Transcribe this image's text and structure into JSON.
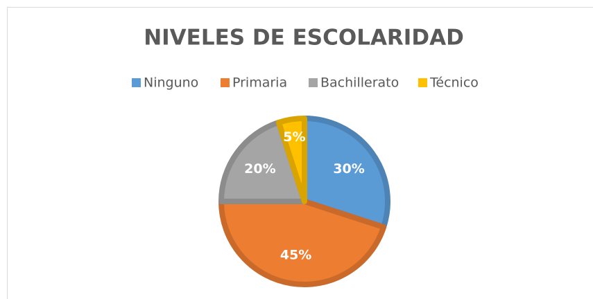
{
  "chart_data": {
    "type": "pie",
    "title": "NIVELES DE ESCOLARIDAD",
    "categories": [
      "Ninguno",
      "Primaria",
      "Bachillerato",
      "Técnico"
    ],
    "values": [
      30,
      45,
      20,
      5
    ],
    "value_labels": [
      "30%",
      "45%",
      "20%",
      "5%"
    ],
    "colors": [
      "#5b9bd5",
      "#ed7d31",
      "#a5a5a5",
      "#ffc000"
    ],
    "legend": "top"
  }
}
